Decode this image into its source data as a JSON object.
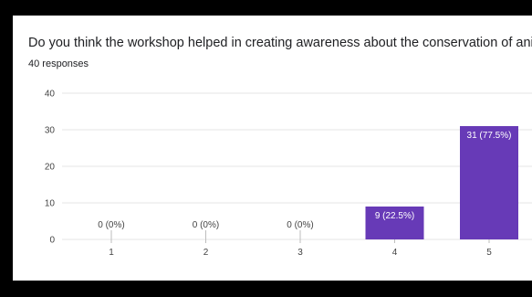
{
  "card": {
    "title": "Do you think the workshop helped in creating awareness about the conservation of animals?",
    "subtitle": "40 responses"
  },
  "colors": {
    "bar": "#673ab7",
    "grid": "#e6e6e6",
    "zero_label": "#444444",
    "bar_label": "#ffffff"
  },
  "chart_data": {
    "type": "bar",
    "title": "Do you think the workshop helped in creating awareness about the conservation of animals?",
    "subtitle": "40 responses",
    "categories": [
      "1",
      "2",
      "3",
      "4",
      "5"
    ],
    "values": [
      0,
      0,
      0,
      9,
      31
    ],
    "labels": [
      "0 (0%)",
      "0 (0%)",
      "0 (0%)",
      "9 (22.5%)",
      "31 (77.5%)"
    ],
    "yticks": [
      0,
      10,
      20,
      30,
      40
    ],
    "ylim": [
      0,
      40
    ],
    "grid": true,
    "xlabel": "",
    "ylabel": ""
  }
}
